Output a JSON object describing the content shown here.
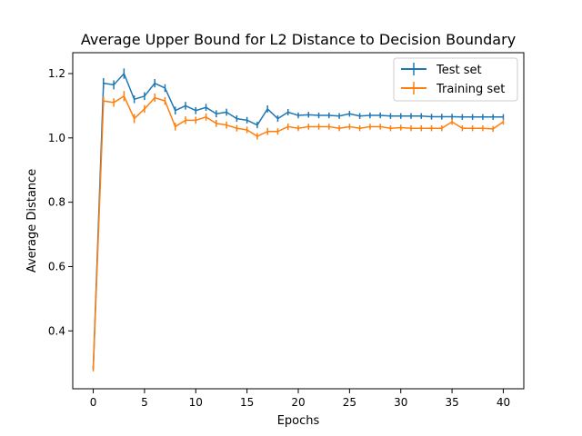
{
  "chart_data": {
    "type": "line",
    "title": "Average Upper Bound for L2 Distance to Decision Boundary",
    "xlabel": "Epochs",
    "ylabel": "Average Distance",
    "xlim": [
      -2,
      42
    ],
    "ylim": [
      0.22,
      1.265
    ],
    "xticks": [
      0,
      5,
      10,
      15,
      20,
      25,
      30,
      35,
      40
    ],
    "yticks": [
      0.4,
      0.6,
      0.8,
      1.0,
      1.2
    ],
    "ytick_labels": [
      "0.4",
      "0.6",
      "0.8",
      "1.0",
      "1.2"
    ],
    "grid": false,
    "legend_position": "top-right",
    "x": [
      0,
      1,
      2,
      3,
      4,
      5,
      6,
      7,
      8,
      9,
      10,
      11,
      12,
      13,
      14,
      15,
      16,
      17,
      18,
      19,
      20,
      21,
      22,
      23,
      24,
      25,
      26,
      27,
      28,
      29,
      30,
      31,
      32,
      33,
      34,
      35,
      36,
      37,
      38,
      39,
      40
    ],
    "series": [
      {
        "name": "Test set",
        "color": "#1f77b4",
        "values": [
          0.285,
          1.17,
          1.165,
          1.2,
          1.12,
          1.13,
          1.17,
          1.155,
          1.085,
          1.1,
          1.085,
          1.095,
          1.075,
          1.08,
          1.06,
          1.055,
          1.04,
          1.09,
          1.06,
          1.08,
          1.07,
          1.072,
          1.07,
          1.07,
          1.068,
          1.075,
          1.068,
          1.07,
          1.07,
          1.068,
          1.068,
          1.068,
          1.068,
          1.066,
          1.066,
          1.066,
          1.065,
          1.065,
          1.065,
          1.065,
          1.065
        ],
        "errors": [
          0.006,
          0.016,
          0.014,
          0.016,
          0.012,
          0.012,
          0.013,
          0.012,
          0.012,
          0.012,
          0.011,
          0.011,
          0.011,
          0.011,
          0.01,
          0.01,
          0.01,
          0.011,
          0.01,
          0.01,
          0.009,
          0.009,
          0.009,
          0.009,
          0.009,
          0.009,
          0.009,
          0.009,
          0.009,
          0.009,
          0.009,
          0.009,
          0.009,
          0.009,
          0.009,
          0.009,
          0.009,
          0.009,
          0.009,
          0.009,
          0.009
        ]
      },
      {
        "name": "Training set",
        "color": "#ff7f0e",
        "values": [
          0.28,
          1.115,
          1.11,
          1.13,
          1.06,
          1.09,
          1.125,
          1.115,
          1.035,
          1.055,
          1.055,
          1.065,
          1.045,
          1.04,
          1.03,
          1.025,
          1.005,
          1.02,
          1.02,
          1.035,
          1.03,
          1.035,
          1.035,
          1.035,
          1.03,
          1.035,
          1.03,
          1.035,
          1.035,
          1.03,
          1.032,
          1.03,
          1.03,
          1.03,
          1.03,
          1.05,
          1.03,
          1.03,
          1.03,
          1.028,
          1.05
        ],
        "errors": [
          0.006,
          0.015,
          0.013,
          0.016,
          0.014,
          0.012,
          0.013,
          0.012,
          0.012,
          0.012,
          0.011,
          0.011,
          0.011,
          0.011,
          0.01,
          0.01,
          0.01,
          0.011,
          0.01,
          0.01,
          0.009,
          0.009,
          0.009,
          0.009,
          0.009,
          0.009,
          0.009,
          0.009,
          0.009,
          0.009,
          0.009,
          0.009,
          0.009,
          0.009,
          0.009,
          0.009,
          0.009,
          0.009,
          0.009,
          0.009,
          0.009
        ]
      }
    ]
  }
}
